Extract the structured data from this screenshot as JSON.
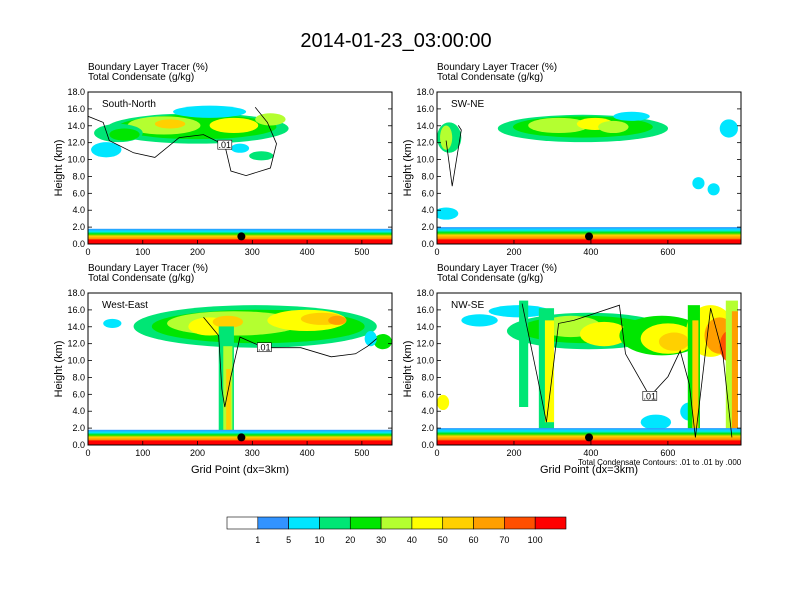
{
  "title": "2014-01-23_03:00:00",
  "header_lines": [
    "Boundary Layer Tracer    (%)",
    "Total Condensate    (g/kg)"
  ],
  "ylabel": "Height (km)",
  "xlabel": "Grid Point (dx=3km)",
  "footnote": "Total Condensate Contours: .01 to .01 by .000",
  "colorbar": {
    "colors": [
      "#ffffff",
      "#3293ff",
      "#00e6ff",
      "#00e675",
      "#00e600",
      "#b4ff30",
      "#ffff00",
      "#ffd000",
      "#ff9f00",
      "#ff4f00",
      "#ff0000"
    ],
    "labels": [
      "1",
      "5",
      "10",
      "20",
      "30",
      "40",
      "50",
      "60",
      "70",
      "100"
    ]
  },
  "chart_data": [
    {
      "type": "heatmap",
      "panel": "South-North",
      "xlim": [
        0,
        555
      ],
      "ylim": [
        0,
        18
      ],
      "xticks": [
        0,
        100,
        200,
        300,
        400,
        500
      ],
      "yticks": [
        "0.0",
        "2.0",
        "4.0",
        "6.0",
        "8.0",
        "10.0",
        "12.0",
        "14.0",
        "16.0",
        "18.0"
      ],
      "marker_x": 280,
      "contour_label": ".01",
      "cloud_layer_km": [
        10,
        17
      ],
      "boundary_layer_km": [
        0,
        1.8
      ]
    },
    {
      "type": "heatmap",
      "panel": "SW-NE",
      "xlim": [
        0,
        790
      ],
      "ylim": [
        0,
        18
      ],
      "xticks": [
        0,
        200,
        400,
        600
      ],
      "yticks": [
        "0.0",
        "2.0",
        "4.0",
        "6.0",
        "8.0",
        "10.0",
        "12.0",
        "14.0",
        "16.0",
        "18.0"
      ],
      "marker_x": 395,
      "contour_label": "",
      "cloud_layer_km": [
        10,
        16
      ],
      "boundary_layer_km": [
        0,
        2.0
      ]
    },
    {
      "type": "heatmap",
      "panel": "West-East",
      "xlim": [
        0,
        555
      ],
      "ylim": [
        0,
        18
      ],
      "xticks": [
        0,
        100,
        200,
        300,
        400,
        500
      ],
      "yticks": [
        "0.0",
        "2.0",
        "4.0",
        "6.0",
        "8.0",
        "10.0",
        "12.0",
        "14.0",
        "16.0",
        "18.0"
      ],
      "marker_x": 280,
      "contour_label": ".01",
      "cloud_layer_km": [
        11,
        17
      ],
      "boundary_layer_km": [
        0,
        1.8
      ]
    },
    {
      "type": "heatmap",
      "panel": "NW-SE",
      "xlim": [
        0,
        790
      ],
      "ylim": [
        0,
        18
      ],
      "xticks": [
        0,
        200,
        400,
        600
      ],
      "yticks": [
        "0.0",
        "2.0",
        "4.0",
        "6.0",
        "8.0",
        "10.0",
        "12.0",
        "14.0",
        "16.0",
        "18.0"
      ],
      "marker_x": 395,
      "contour_label": ".01",
      "cloud_layer_km": [
        10,
        18
      ],
      "boundary_layer_km": [
        0,
        2.0
      ]
    }
  ]
}
